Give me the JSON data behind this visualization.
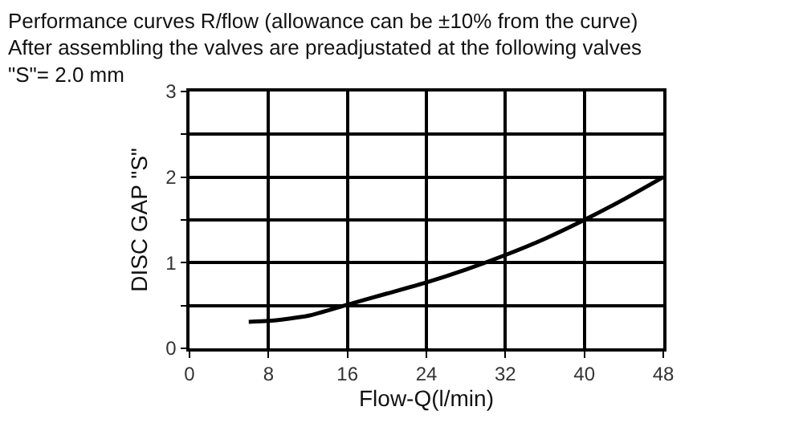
{
  "chart_data": {
    "type": "line",
    "title": "Performance curves R/flow (allowance can be ±10% from the curve)\nAfter assembling the valves are preadjustated at the following valves\n\"S\"= 2.0 mm",
    "xlabel": "Flow-Q(l/min)",
    "ylabel": "DISC GAP \"S\"",
    "x": [
      6,
      8,
      12,
      16,
      20,
      24,
      28,
      32,
      36,
      40,
      44,
      48
    ],
    "series": [
      {
        "color": "#000000",
        "values": [
          0.31,
          0.32,
          0.38,
          0.51,
          0.64,
          0.77,
          0.92,
          1.09,
          1.28,
          1.5,
          1.74,
          2.0
        ]
      }
    ],
    "xlim": [
      0,
      48
    ],
    "xticks": [
      0,
      8,
      16,
      24,
      32,
      40,
      48
    ],
    "ylim": [
      0,
      3
    ],
    "yticks": [
      0,
      {
        "value": 0.5,
        "label": null
      },
      1,
      {
        "value": 1.5,
        "label": null
      },
      2,
      {
        "value": 2.5,
        "label": null
      },
      3
    ],
    "grid": true,
    "marker": "none",
    "line_style": "solid"
  }
}
